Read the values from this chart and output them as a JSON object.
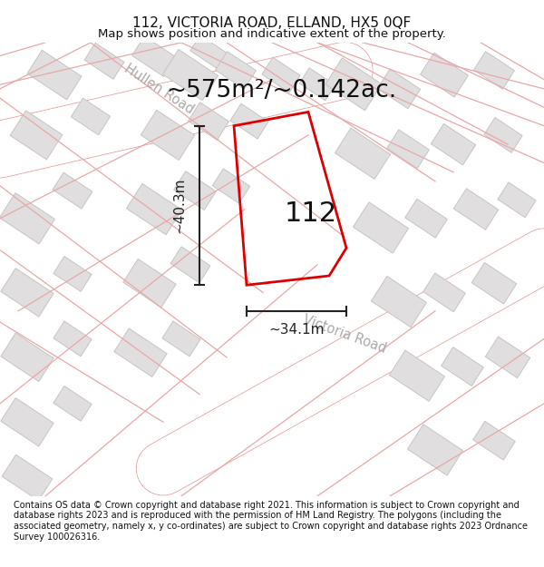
{
  "title_line1": "112, VICTORIA ROAD, ELLAND, HX5 0QF",
  "title_line2": "Map shows position and indicative extent of the property.",
  "footer": "Contains OS data © Crown copyright and database right 2021. This information is subject to Crown copyright and database rights 2023 and is reproduced with the permission of HM Land Registry. The polygons (including the associated geometry, namely x, y co-ordinates) are subject to Crown copyright and database rights 2023 Ordnance Survey 100026316.",
  "area_label": "~575m²/~0.142ac.",
  "width_label": "~34.1m",
  "height_label": "~40.3m",
  "property_number": "112",
  "map_bg": "#f7f6f4",
  "road_white": "#ffffff",
  "road_edge": "#e8a8a8",
  "road_center_label": "#c8c0c0",
  "building_fill": "#e0dede",
  "building_edge": "#c8c4c4",
  "property_stroke": "#dd0000",
  "dim_color": "#222222",
  "text_color": "#111111",
  "road_label_color": "#aaaaaa",
  "title_fontsize": 11,
  "subtitle_fontsize": 9.5,
  "area_fontsize": 19,
  "property_num_fontsize": 22,
  "footer_fontsize": 7.0,
  "road_label_fontsize": 10.5
}
